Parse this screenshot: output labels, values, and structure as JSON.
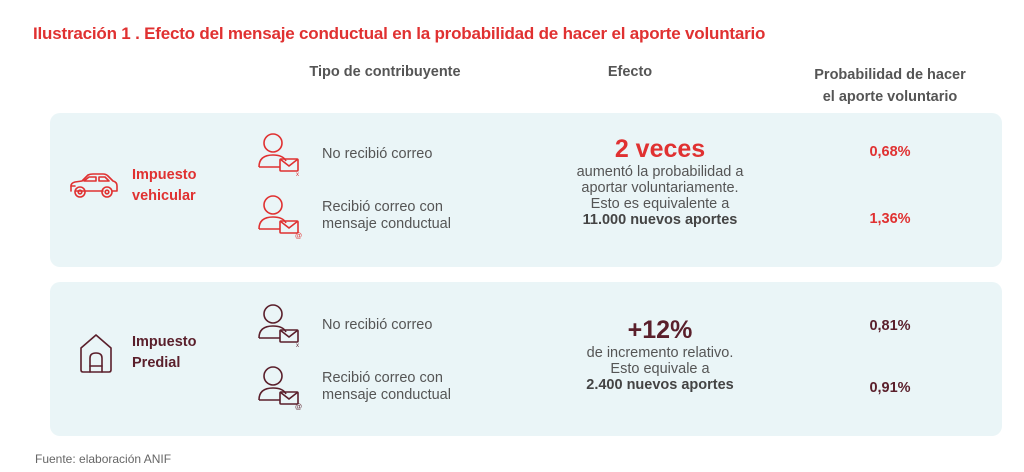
{
  "title": "Ilustración 1 . Efecto del mensaje conductual en la probabilidad de hacer el aporte voluntario",
  "columns": {
    "tipo": "Tipo de contribuyente",
    "efecto": "Efecto",
    "prob_line1": "Probabilidad de hacer",
    "prob_line2": "el aporte voluntario"
  },
  "colors": {
    "red": "#e03131",
    "dark": "#5a1f2b",
    "panel": "#eaf5f7"
  },
  "panels": [
    {
      "icon": "car-icon",
      "name_line1": "Impuesto",
      "name_line2": "vehicular",
      "rows": [
        {
          "icon": "person-mail-icon",
          "label_line1": "No recibió correo",
          "label_line2": "",
          "probability": "0,68%"
        },
        {
          "icon": "person-email-at-icon",
          "label_line1": "Recibió correo con",
          "label_line2": "mensaje conductual",
          "probability": "1,36%"
        }
      ],
      "effect": {
        "headline": "2 veces",
        "line1": "aumentó la probabilidad a",
        "line2": "aportar voluntariamente.",
        "line3": "Esto es equivalente a",
        "emphasis": "11.000 nuevos aportes"
      }
    },
    {
      "icon": "house-icon",
      "name_line1": "Impuesto",
      "name_line2": "Predial",
      "rows": [
        {
          "icon": "person-mail-icon",
          "label_line1": "No recibió correo",
          "label_line2": "",
          "probability": "0,81%"
        },
        {
          "icon": "person-email-at-icon",
          "label_line1": "Recibió correo con",
          "label_line2": "mensaje conductual",
          "probability": "0,91%"
        }
      ],
      "effect": {
        "headline": "+12%",
        "line1": "de incremento relativo.",
        "line2": "Esto equivale a",
        "emphasis": "2.400 nuevos aportes"
      }
    }
  ],
  "source": "Fuente: elaboración ANIF"
}
